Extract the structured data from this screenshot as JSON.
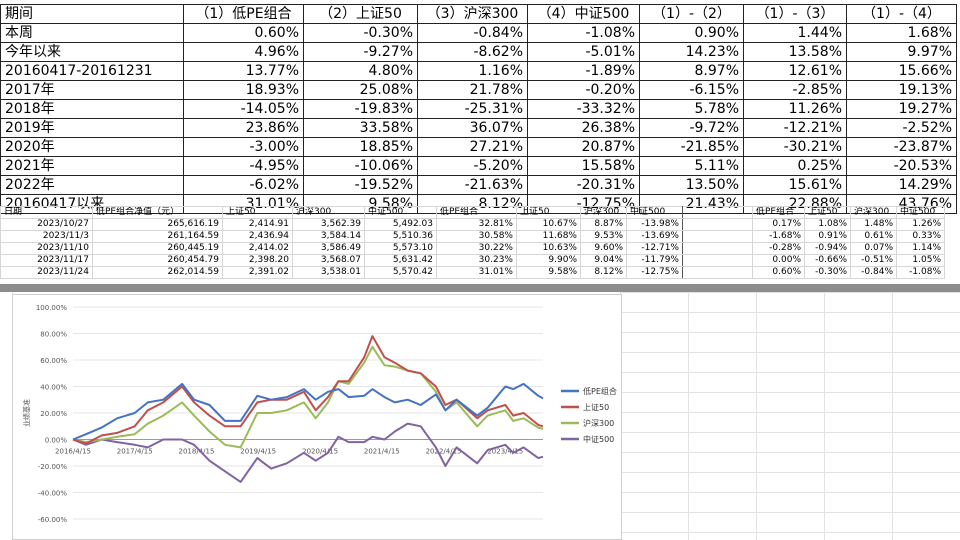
{
  "summary_table": {
    "headers": [
      "期间",
      "（1）低PE组合",
      "（2）上证50",
      "（3）沪深300",
      "（4）中证500",
      "（1）-（2）",
      "（1）-（3）",
      "（1）-（4）"
    ],
    "rows": [
      [
        "本周",
        "0.60%",
        "-0.30%",
        "-0.84%",
        "-1.08%",
        "0.90%",
        "1.44%",
        "1.68%"
      ],
      [
        "今年以来",
        "4.96%",
        "-9.27%",
        "-8.62%",
        "-5.01%",
        "14.23%",
        "13.58%",
        "9.97%"
      ],
      [
        "20160417-20161231",
        "13.77%",
        "4.80%",
        "1.16%",
        "-1.89%",
        "8.97%",
        "12.61%",
        "15.66%"
      ],
      [
        "2017年",
        "18.93%",
        "25.08%",
        "21.78%",
        "-0.20%",
        "-6.15%",
        "-2.85%",
        "19.13%"
      ],
      [
        "2018年",
        "-14.05%",
        "-19.83%",
        "-25.31%",
        "-33.32%",
        "5.78%",
        "11.26%",
        "19.27%"
      ],
      [
        "2019年",
        "23.86%",
        "33.58%",
        "36.07%",
        "26.38%",
        "-9.72%",
        "-12.21%",
        "-2.52%"
      ],
      [
        "2020年",
        "-3.00%",
        "18.85%",
        "27.21%",
        "20.87%",
        "-21.85%",
        "-30.21%",
        "-23.87%"
      ],
      [
        "2021年",
        "-4.95%",
        "-10.06%",
        "-5.20%",
        "15.58%",
        "5.11%",
        "0.25%",
        "-20.53%"
      ],
      [
        "2022年",
        "-6.02%",
        "-19.52%",
        "-21.63%",
        "-20.31%",
        "13.50%",
        "15.61%",
        "14.29%"
      ],
      [
        "20160417以来",
        "31.01%",
        "9.58%",
        "8.12%",
        "-12.75%",
        "21.43%",
        "22.88%",
        "43.76%"
      ]
    ]
  },
  "daily_table": {
    "headers": [
      "日期",
      "低PE组合净值（元）",
      "上证50",
      "沪深300",
      "中证500",
      "低PE组合",
      "上证50",
      "沪深300",
      "中证500",
      "",
      "低PE组合",
      "上证50",
      "沪深300",
      "中证500"
    ],
    "rows": [
      [
        "2023/10/27",
        "265,616.19",
        "2,414.91",
        "3,562.39",
        "5,492.03",
        "32.81%",
        "10.67%",
        "8.87%",
        "-13.98%",
        "",
        "0.17%",
        "1.08%",
        "1.48%",
        "1.26%"
      ],
      [
        "2023/11/3",
        "261,164.59",
        "2,436.94",
        "3,584.14",
        "5,510.36",
        "30.58%",
        "11.68%",
        "9.53%",
        "-13.69%",
        "",
        "-1.68%",
        "0.91%",
        "0.61%",
        "0.33%"
      ],
      [
        "2023/11/10",
        "260,445.19",
        "2,414.02",
        "3,586.49",
        "5,573.10",
        "30.22%",
        "10.63%",
        "9.60%",
        "-12.71%",
        "",
        "-0.28%",
        "-0.94%",
        "0.07%",
        "1.14%"
      ],
      [
        "2023/11/17",
        "260,454.79",
        "2,398.20",
        "3,568.07",
        "5,631.42",
        "30.23%",
        "9.90%",
        "9.04%",
        "-11.79%",
        "",
        "0.00%",
        "-0.66%",
        "-0.51%",
        "1.05%"
      ],
      [
        "2023/11/24",
        "262,014.59",
        "2,391.02",
        "3,538.01",
        "5,570.42",
        "31.01%",
        "9.58%",
        "8.12%",
        "-12.75%",
        "",
        "0.60%",
        "-0.30%",
        "-0.84%",
        "-1.08%"
      ]
    ]
  },
  "chart_data": {
    "type": "line",
    "title": "",
    "ylabel": "业绩基准",
    "xlabel": "",
    "ylim": [
      -0.6,
      1.0
    ],
    "y_ticks": [
      "-60.00%",
      "-40.00%",
      "-20.00%",
      "0.00%",
      "20.00%",
      "40.00%",
      "60.00%",
      "80.00%",
      "100.00%"
    ],
    "x_ticks": [
      "2016/4/15",
      "2017/4/15",
      "2018/4/15",
      "2019/4/15",
      "2020/4/15",
      "2021/4/15",
      "2022/4/15",
      "2023/4/15"
    ],
    "x_range": [
      "2016/4/15",
      "2023/11/24"
    ],
    "legend_position": "right",
    "series": [
      {
        "name": "低PE组合",
        "color": "#4472C4",
        "x": [
          "2016/4/15",
          "2016/7/1",
          "2016/10/1",
          "2017/1/1",
          "2017/4/15",
          "2017/7/1",
          "2017/10/1",
          "2018/1/20",
          "2018/4/1",
          "2018/7/1",
          "2018/10/1",
          "2019/1/1",
          "2019/4/10",
          "2019/7/1",
          "2019/10/1",
          "2020/1/10",
          "2020/3/20",
          "2020/6/1",
          "2020/8/1",
          "2020/10/1",
          "2021/1/1",
          "2021/2/18",
          "2021/5/1",
          "2021/7/1",
          "2021/9/15",
          "2021/12/1",
          "2022/3/1",
          "2022/4/26",
          "2022/7/1",
          "2022/10/31",
          "2023/1/1",
          "2023/4/15",
          "2023/6/1",
          "2023/8/1",
          "2023/10/27",
          "2023/11/24"
        ],
        "y": [
          0.0,
          0.04,
          0.09,
          0.16,
          0.2,
          0.28,
          0.3,
          0.42,
          0.3,
          0.26,
          0.14,
          0.14,
          0.33,
          0.3,
          0.32,
          0.38,
          0.3,
          0.36,
          0.38,
          0.32,
          0.33,
          0.38,
          0.32,
          0.28,
          0.3,
          0.26,
          0.34,
          0.22,
          0.3,
          0.18,
          0.24,
          0.4,
          0.38,
          0.42,
          0.33,
          0.31
        ]
      },
      {
        "name": "上证50",
        "color": "#C0504D",
        "x": [
          "2016/4/15",
          "2016/7/1",
          "2016/10/1",
          "2017/1/1",
          "2017/4/15",
          "2017/7/1",
          "2017/10/1",
          "2018/1/20",
          "2018/4/1",
          "2018/7/1",
          "2018/10/1",
          "2019/1/1",
          "2019/4/10",
          "2019/7/1",
          "2019/10/1",
          "2020/1/10",
          "2020/3/20",
          "2020/6/1",
          "2020/8/1",
          "2020/10/1",
          "2021/1/1",
          "2021/2/18",
          "2021/5/1",
          "2021/7/1",
          "2021/9/15",
          "2021/12/1",
          "2022/3/1",
          "2022/4/26",
          "2022/7/1",
          "2022/10/31",
          "2023/1/1",
          "2023/4/15",
          "2023/6/1",
          "2023/8/1",
          "2023/10/27",
          "2023/11/24"
        ],
        "y": [
          0.0,
          -0.03,
          0.03,
          0.05,
          0.1,
          0.22,
          0.28,
          0.4,
          0.28,
          0.18,
          0.1,
          0.1,
          0.28,
          0.3,
          0.3,
          0.36,
          0.22,
          0.32,
          0.44,
          0.44,
          0.62,
          0.78,
          0.62,
          0.58,
          0.52,
          0.5,
          0.4,
          0.26,
          0.3,
          0.16,
          0.22,
          0.26,
          0.18,
          0.2,
          0.11,
          0.1
        ]
      },
      {
        "name": "沪深300",
        "color": "#9BBB59",
        "x": [
          "2016/4/15",
          "2016/7/1",
          "2016/10/1",
          "2017/1/1",
          "2017/4/15",
          "2017/7/1",
          "2017/10/1",
          "2018/1/20",
          "2018/4/1",
          "2018/7/1",
          "2018/10/1",
          "2019/1/1",
          "2019/4/10",
          "2019/7/1",
          "2019/10/1",
          "2020/1/10",
          "2020/3/20",
          "2020/6/1",
          "2020/8/1",
          "2020/10/1",
          "2021/1/1",
          "2021/2/18",
          "2021/5/1",
          "2021/7/1",
          "2021/9/15",
          "2021/12/1",
          "2022/3/1",
          "2022/4/26",
          "2022/7/1",
          "2022/10/31",
          "2023/1/1",
          "2023/4/15",
          "2023/6/1",
          "2023/8/1",
          "2023/10/27",
          "2023/11/24"
        ],
        "y": [
          0.0,
          -0.02,
          0.0,
          0.02,
          0.04,
          0.12,
          0.18,
          0.28,
          0.18,
          0.06,
          -0.04,
          -0.06,
          0.2,
          0.2,
          0.22,
          0.28,
          0.16,
          0.28,
          0.44,
          0.42,
          0.58,
          0.7,
          0.56,
          0.55,
          0.52,
          0.5,
          0.36,
          0.22,
          0.28,
          0.1,
          0.18,
          0.22,
          0.14,
          0.16,
          0.09,
          0.08
        ]
      },
      {
        "name": "中证500",
        "color": "#8064A2",
        "x": [
          "2016/4/15",
          "2016/7/1",
          "2016/10/1",
          "2017/1/1",
          "2017/4/15",
          "2017/7/1",
          "2017/10/1",
          "2018/1/20",
          "2018/4/1",
          "2018/7/1",
          "2018/10/1",
          "2019/1/1",
          "2019/4/10",
          "2019/7/1",
          "2019/10/1",
          "2020/1/10",
          "2020/3/20",
          "2020/6/1",
          "2020/8/1",
          "2020/10/1",
          "2021/1/1",
          "2021/2/18",
          "2021/5/1",
          "2021/7/1",
          "2021/9/15",
          "2021/12/1",
          "2022/3/1",
          "2022/4/26",
          "2022/7/1",
          "2022/10/31",
          "2023/1/1",
          "2023/4/15",
          "2023/6/1",
          "2023/8/1",
          "2023/10/27",
          "2023/11/24"
        ],
        "y": [
          0.0,
          -0.04,
          0.0,
          -0.02,
          -0.04,
          -0.06,
          0.0,
          0.0,
          -0.04,
          -0.16,
          -0.24,
          -0.32,
          -0.14,
          -0.22,
          -0.18,
          -0.1,
          -0.16,
          -0.1,
          0.02,
          -0.02,
          -0.02,
          0.02,
          0.0,
          0.06,
          0.12,
          0.1,
          -0.06,
          -0.2,
          -0.06,
          -0.18,
          -0.08,
          -0.04,
          -0.1,
          -0.06,
          -0.14,
          -0.13
        ]
      }
    ]
  }
}
